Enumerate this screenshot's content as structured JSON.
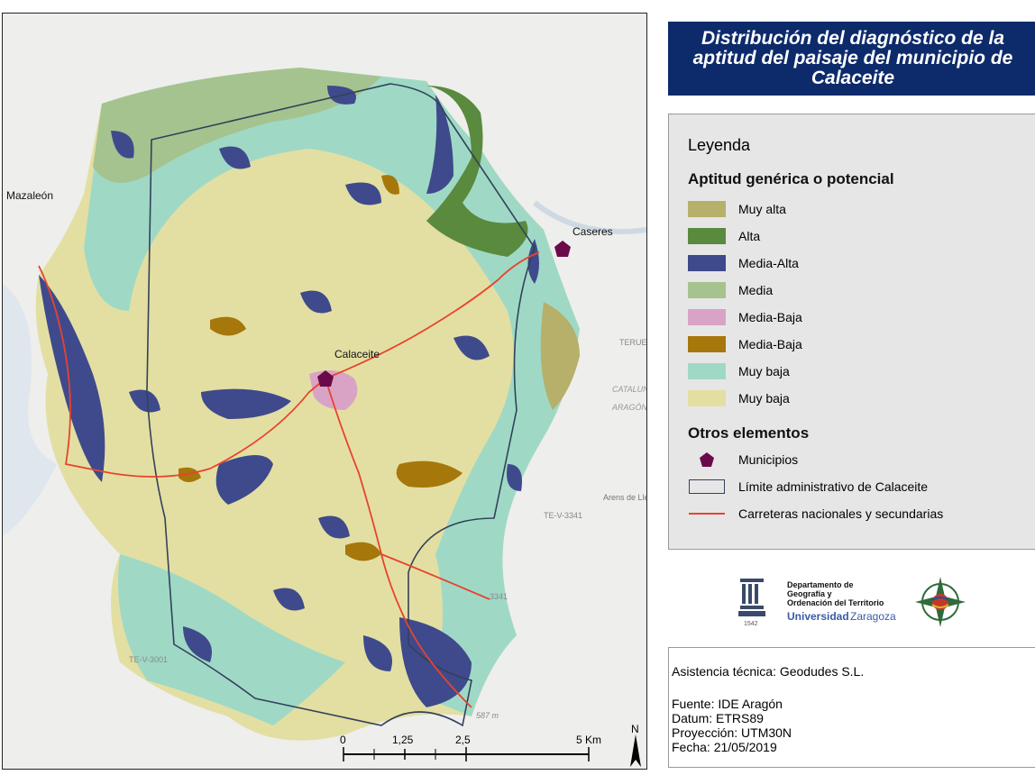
{
  "title": "Distribución del diagnóstico de la aptitud del paisaje del municipio de Calaceite",
  "legend": {
    "heading": "Leyenda",
    "section1": "Aptitud genérica o potencial",
    "classes": [
      {
        "label": "Muy alta",
        "color": "#b6b06a"
      },
      {
        "label": "Alta",
        "color": "#5a8a3e"
      },
      {
        "label": "Media-Alta",
        "color": "#3f4a8c"
      },
      {
        "label": "Media",
        "color": "#a5c38f"
      },
      {
        "label": "Media-Baja",
        "color": "#d9a3c6"
      },
      {
        "label": "Media-Baja",
        "color": "#a6770a"
      },
      {
        "label": "Muy baja",
        "color": "#9fd9c6"
      },
      {
        "label": "Muy baja",
        "color": "#e3dfa2"
      }
    ],
    "section2": "Otros elementos",
    "others": [
      {
        "label": "Municipios",
        "color": "#6a0a4a"
      },
      {
        "label": "Límite administrativo de Calaceite",
        "color": "#33415a"
      },
      {
        "label": "Carreteras nacionales y secundarias",
        "color": "#e8432e"
      }
    ]
  },
  "map": {
    "places": [
      "Mazaleón",
      "Caseres",
      "Calaceite",
      "Arens de Lledó",
      "TERUEL",
      "CATALUNYA",
      "ARAGÓN"
    ],
    "roads": [
      "TE-V-3341",
      "TE-V-3001",
      "3341"
    ],
    "elevation": "587 m",
    "scale": {
      "ticks": [
        "0",
        "1,25",
        "2,5",
        "5 Km"
      ]
    },
    "north": "N"
  },
  "logos": {
    "dept_line1": "Departamento de",
    "dept_line2": "Geografía y",
    "dept_line3": "Ordenación del Territorio",
    "univ_a": "Universidad",
    "univ_b": "Zaragoza",
    "year": "1542"
  },
  "info": {
    "assistance": "Asistencia técnica: Geodudes S.L.",
    "source": "Fuente: IDE Aragón",
    "datum": "Datum: ETRS89",
    "projection": "Proyección: UTM30N",
    "date": "Fecha: 21/05/2019"
  }
}
